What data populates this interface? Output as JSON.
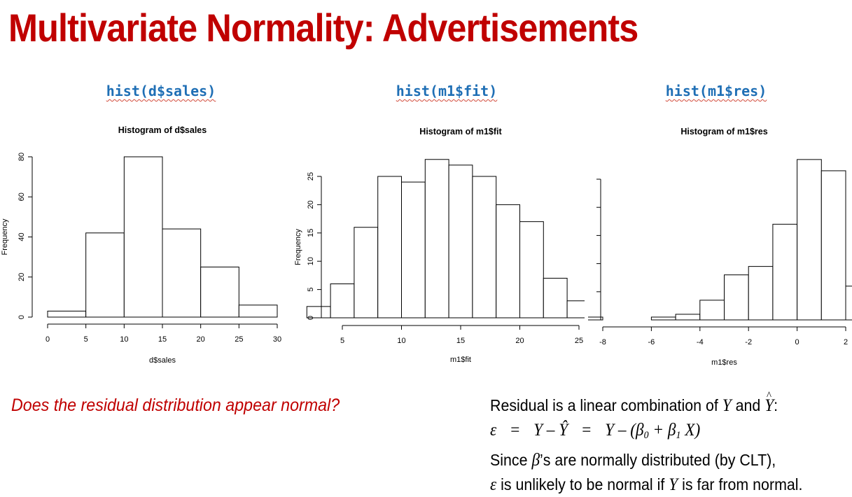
{
  "slide": {
    "title": "Multivariate Normality: Advertisements",
    "question": "Does the residual distribution appear normal?"
  },
  "code_labels": [
    "hist(d$sales)",
    "hist(m1$fit)",
    "hist(m1$res)"
  ],
  "note": {
    "line1_prefix": "Residual is a linear combination of ",
    "line1_y": "Y",
    "line1_and": " and ",
    "line1_yhat": "Y",
    "line1_colon": ":",
    "eq_eps": "ε",
    "eq_eq1": "=",
    "eq_middle": "Y – Ŷ",
    "eq_eq2": "=",
    "eq_right_a": "Y – (β",
    "eq_sub0": "0",
    "eq_plus": " + β",
    "eq_sub1": "1",
    "eq_x": " X)",
    "line3_prefix": "Since ",
    "line3_beta": "β",
    "line3_suffix": "’s are normally distributed (by CLT),",
    "line4_eps": "ε",
    "line4_mid": " is unlikely to be normal if ",
    "line4_y": "Y",
    "line4_suffix": " is far from normal."
  },
  "colors": {
    "title": "#c00000",
    "code": "#1f6fb5",
    "question": "#c00000",
    "bar_fill": "#ffffff",
    "bar_stroke": "#000000"
  },
  "chart_data": [
    {
      "type": "bar",
      "title": "Histogram of d$sales",
      "xlabel": "d$sales",
      "ylabel": "Frequency",
      "bins": [
        [
          0,
          5
        ],
        [
          5,
          10
        ],
        [
          10,
          15
        ],
        [
          15,
          20
        ],
        [
          20,
          25
        ],
        [
          25,
          30
        ]
      ],
      "values": [
        3,
        42,
        80,
        44,
        25,
        6
      ],
      "xlim": [
        0,
        30
      ],
      "ylim": [
        0,
        80
      ],
      "xticks": [
        0,
        5,
        10,
        15,
        20,
        25,
        30
      ],
      "yticks": [
        0,
        20,
        40,
        60,
        80
      ]
    },
    {
      "type": "bar",
      "title": "Histogram of m1$fit",
      "xlabel": "m1$fit",
      "ylabel": "Frequency",
      "bins": [
        [
          2,
          4
        ],
        [
          4,
          6
        ],
        [
          6,
          8
        ],
        [
          8,
          10
        ],
        [
          10,
          12
        ],
        [
          12,
          14
        ],
        [
          14,
          16
        ],
        [
          16,
          18
        ],
        [
          18,
          20
        ],
        [
          20,
          22
        ],
        [
          22,
          24
        ],
        [
          24,
          26
        ]
      ],
      "values": [
        2,
        6,
        16,
        25,
        24,
        28,
        27,
        25,
        20,
        17,
        7,
        3
      ],
      "xlim": [
        5,
        25
      ],
      "ylim": [
        0,
        25
      ],
      "xticks": [
        5,
        10,
        15,
        20,
        25
      ],
      "yticks": [
        0,
        5,
        10,
        15,
        20,
        25
      ]
    },
    {
      "type": "bar",
      "title": "Histogram of m1$res",
      "xlabel": "m1$res",
      "ylabel": "",
      "bins": [
        [
          -9,
          -8
        ],
        [
          -8,
          -7
        ],
        [
          -7,
          -6
        ],
        [
          -6,
          -5
        ],
        [
          -5,
          -4
        ],
        [
          -4,
          -3
        ],
        [
          -3,
          -2
        ],
        [
          -2,
          -1
        ],
        [
          -1,
          0
        ],
        [
          0,
          1
        ],
        [
          1,
          2
        ],
        [
          2,
          3
        ]
      ],
      "values": [
        1,
        0,
        0,
        1,
        2,
        7,
        16,
        19,
        34,
        57,
        53,
        12
      ],
      "xlim": [
        -8,
        2
      ],
      "ylim": [
        0,
        50
      ],
      "xticks": [
        -8,
        -6,
        -4,
        -2,
        0,
        2
      ],
      "yticks": []
    }
  ]
}
